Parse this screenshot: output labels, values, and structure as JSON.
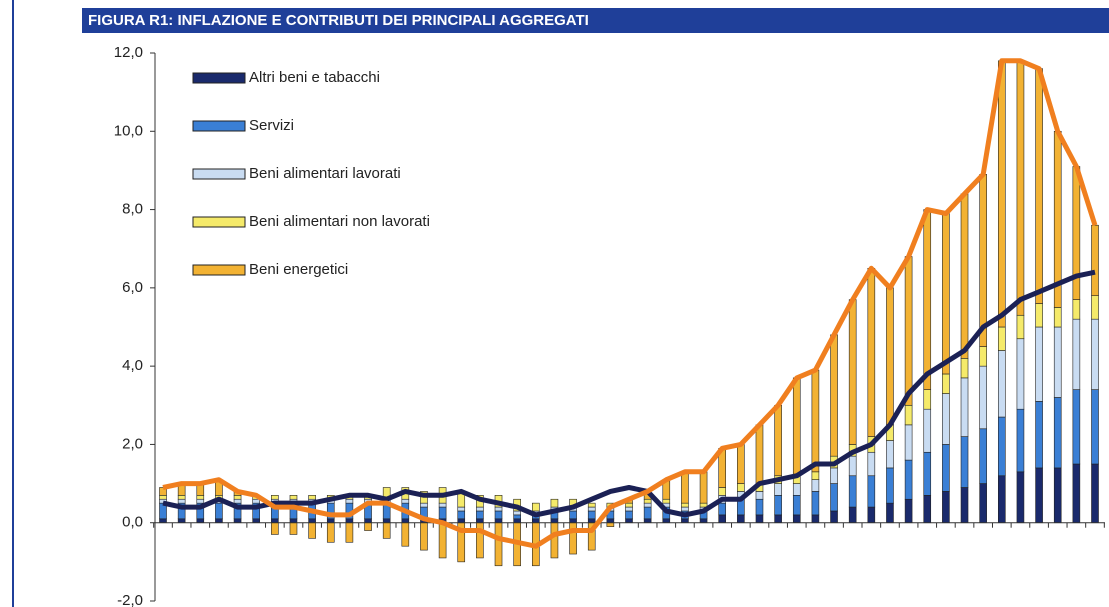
{
  "chart_data": {
    "type": "stacked_bar_line",
    "title": "FIGURA R1: INFLAZIONE E CONTRIBUTI DEI PRINCIPALI AGGREGATI",
    "ylim": [
      -2,
      12
    ],
    "yticks": [
      {
        "value": -2,
        "label": "-2,0"
      },
      {
        "value": 0,
        "label": "0,0"
      },
      {
        "value": 2,
        "label": "2,0"
      },
      {
        "value": 4,
        "label": "4,0"
      },
      {
        "value": 6,
        "label": "6,0"
      },
      {
        "value": 8,
        "label": "8,0"
      },
      {
        "value": 10,
        "label": "10,0"
      },
      {
        "value": 12,
        "label": "12,0"
      }
    ],
    "series": [
      {
        "name": "Altri beni e tabacchi",
        "color": "#1a2a6c",
        "values": [
          0.1,
          0.1,
          0.1,
          0.1,
          0.1,
          0.1,
          0.1,
          0.1,
          0.1,
          0.1,
          0.1,
          0.1,
          0.1,
          0.1,
          0.1,
          0.1,
          0.1,
          0.1,
          0.1,
          0.1,
          0.1,
          0.1,
          0.1,
          0.1,
          0.1,
          0.1,
          0.1,
          0.1,
          0.1,
          0.1,
          0.2,
          0.2,
          0.2,
          0.2,
          0.2,
          0.2,
          0.3,
          0.4,
          0.4,
          0.5,
          0.6,
          0.7,
          0.8,
          0.9,
          1.0,
          1.2,
          1.3,
          1.4,
          1.4,
          1.5,
          1.5
        ]
      },
      {
        "name": "Servizi",
        "color": "#3a7fd5",
        "values": [
          0.4,
          0.4,
          0.4,
          0.4,
          0.4,
          0.4,
          0.4,
          0.4,
          0.4,
          0.4,
          0.4,
          0.4,
          0.4,
          0.4,
          0.3,
          0.3,
          0.2,
          0.2,
          0.2,
          0.1,
          0.1,
          0.2,
          0.2,
          0.2,
          0.2,
          0.2,
          0.3,
          0.3,
          0.2,
          0.2,
          0.3,
          0.4,
          0.4,
          0.5,
          0.5,
          0.6,
          0.7,
          0.8,
          0.8,
          0.9,
          1.0,
          1.1,
          1.2,
          1.3,
          1.4,
          1.5,
          1.6,
          1.7,
          1.8,
          1.9,
          1.9
        ]
      },
      {
        "name": "Beni alimentari lavorati",
        "color": "#c9dcf2",
        "values": [
          0.1,
          0.1,
          0.1,
          0.1,
          0.1,
          0.1,
          0.1,
          0.1,
          0.1,
          0.1,
          0.1,
          0.1,
          0.1,
          0.1,
          0.1,
          0.1,
          0.1,
          0.1,
          0.1,
          0.1,
          0.1,
          0.1,
          0.1,
          0.1,
          0.1,
          0.1,
          0.1,
          0.1,
          0.1,
          0.1,
          0.2,
          0.2,
          0.2,
          0.3,
          0.3,
          0.3,
          0.4,
          0.5,
          0.6,
          0.7,
          0.9,
          1.1,
          1.3,
          1.5,
          1.6,
          1.7,
          1.8,
          1.9,
          1.8,
          1.8,
          1.8
        ]
      },
      {
        "name": "Beni alimentari non lavorati",
        "color": "#f5ea6a",
        "values": [
          0.1,
          0.1,
          0.1,
          0.1,
          0.1,
          0.1,
          0.1,
          0.1,
          0.1,
          0.1,
          0.1,
          0.1,
          0.3,
          0.3,
          0.3,
          0.4,
          0.4,
          0.3,
          0.3,
          0.3,
          0.2,
          0.2,
          0.2,
          0.1,
          0.1,
          0.1,
          0.1,
          0.1,
          0.1,
          0.1,
          0.2,
          0.2,
          0.2,
          0.2,
          0.2,
          0.2,
          0.3,
          0.3,
          0.4,
          0.4,
          0.5,
          0.5,
          0.5,
          0.5,
          0.5,
          0.6,
          0.6,
          0.6,
          0.5,
          0.5,
          0.6
        ]
      },
      {
        "name": "Beni energetici",
        "color": "#f2b233",
        "values": [
          0.2,
          0.3,
          0.3,
          0.4,
          0.1,
          0.0,
          -0.3,
          -0.3,
          -0.4,
          -0.5,
          -0.5,
          -0.2,
          -0.4,
          -0.6,
          -0.7,
          -0.9,
          -1.0,
          -0.9,
          -1.1,
          -1.1,
          -1.1,
          -0.9,
          -0.8,
          -0.7,
          -0.1,
          0.1,
          0.2,
          0.5,
          0.8,
          0.8,
          1.0,
          1.0,
          1.5,
          1.8,
          2.5,
          2.6,
          3.1,
          3.7,
          4.3,
          3.5,
          3.8,
          4.6,
          4.1,
          4.2,
          4.4,
          6.8,
          6.5,
          6.0,
          4.5,
          3.4,
          1.8
        ]
      },
      {
        "type": "line",
        "color": "#1b2155",
        "values": [
          0.5,
          0.4,
          0.4,
          0.6,
          0.4,
          0.4,
          0.5,
          0.5,
          0.5,
          0.6,
          0.7,
          0.7,
          0.6,
          0.8,
          0.7,
          0.7,
          0.8,
          0.6,
          0.5,
          0.4,
          0.2,
          0.3,
          0.4,
          0.6,
          0.8,
          0.9,
          0.8,
          0.3,
          0.2,
          0.3,
          0.6,
          0.6,
          1.0,
          1.1,
          1.2,
          1.5,
          1.5,
          1.8,
          2.0,
          2.5,
          3.3,
          3.8,
          4.1,
          4.4,
          5.0,
          5.3,
          5.7,
          5.9,
          6.1,
          6.3,
          6.4
        ]
      },
      {
        "type": "line",
        "color": "#f07f1f",
        "values": [
          0.9,
          1.0,
          1.0,
          1.1,
          0.8,
          0.7,
          0.4,
          0.4,
          0.3,
          0.2,
          0.2,
          0.5,
          0.5,
          0.3,
          0.1,
          0.0,
          -0.2,
          -0.2,
          -0.4,
          -0.5,
          -0.6,
          -0.3,
          -0.2,
          -0.2,
          0.4,
          0.6,
          0.8,
          1.1,
          1.3,
          1.3,
          1.9,
          2.0,
          2.5,
          3.0,
          3.7,
          3.9,
          4.8,
          5.7,
          6.5,
          6.0,
          6.8,
          8.0,
          7.9,
          8.4,
          8.9,
          11.8,
          11.8,
          11.6,
          10.0,
          9.1,
          7.6
        ]
      }
    ]
  }
}
